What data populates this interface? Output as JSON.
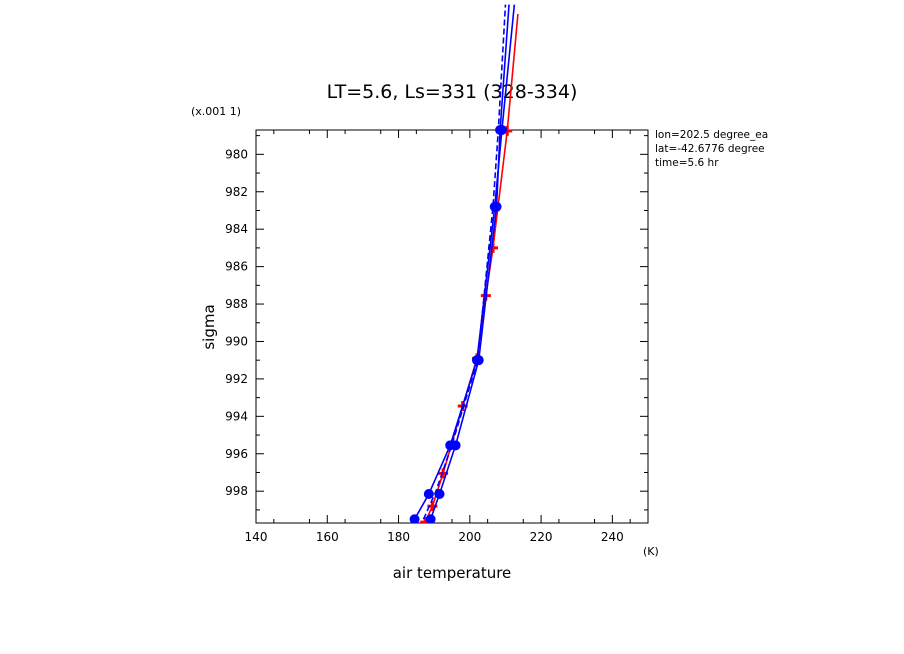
{
  "chart_data": {
    "type": "line",
    "title": "LT=5.6, Ls=331 (328-334)",
    "xlabel": "air temperature",
    "xunit": "(K)",
    "ylabel": "sigma",
    "yscale_label": "(x.001 1)",
    "xlim": [
      140,
      250
    ],
    "ylim": [
      999.7,
      978.7
    ],
    "xticks": [
      140,
      160,
      180,
      200,
      220,
      240
    ],
    "yticks": [
      980,
      982,
      984,
      986,
      988,
      990,
      992,
      994,
      996,
      998
    ],
    "grid": false,
    "info_lines": [
      "lon=202.5 degree_ea",
      "lat=-42.6776 degree",
      "time=5.6 hr"
    ],
    "series": [
      {
        "color": "#ff0000",
        "marker": "plus",
        "line_style": "solid",
        "points": [
          {
            "x": 187.5,
            "y": 999.65
          },
          {
            "x": 189.5,
            "y": 998.8
          },
          {
            "x": 192.5,
            "y": 997.05
          },
          {
            "x": 198.0,
            "y": 993.45
          },
          {
            "x": 202.0,
            "y": 990.9
          },
          {
            "x": 204.5,
            "y": 987.55
          },
          {
            "x": 206.5,
            "y": 985.0
          },
          {
            "x": 210.5,
            "y": 978.75
          },
          {
            "x": 213.5,
            "y": 972.5
          }
        ]
      },
      {
        "color": "#0000ff",
        "marker": "circle",
        "line_style": "solid",
        "points": [
          {
            "x": 184.5,
            "y": 999.5
          },
          {
            "x": 188.5,
            "y": 998.15
          },
          {
            "x": 194.5,
            "y": 995.55
          },
          {
            "x": 202.0,
            "y": 991.0
          },
          {
            "x": 207.0,
            "y": 982.8
          },
          {
            "x": 209.0,
            "y": 978.7
          },
          {
            "x": 212.5,
            "y": 972.0
          }
        ]
      },
      {
        "color": "#0000ff",
        "marker": "circle",
        "line_style": "solid",
        "points": [
          {
            "x": 189.0,
            "y": 999.5
          },
          {
            "x": 191.5,
            "y": 998.15
          },
          {
            "x": 196.0,
            "y": 995.55
          },
          {
            "x": 202.5,
            "y": 991.0
          },
          {
            "x": 207.5,
            "y": 982.8
          },
          {
            "x": 208.5,
            "y": 978.7
          },
          {
            "x": 211.0,
            "y": 972.0
          }
        ]
      },
      {
        "color": "#0000ff",
        "marker": "none",
        "line_style": "dashed",
        "points": [
          {
            "x": 187.0,
            "y": 999.5
          },
          {
            "x": 190.5,
            "y": 998.0
          },
          {
            "x": 195.0,
            "y": 995.5
          },
          {
            "x": 202.2,
            "y": 991.0
          },
          {
            "x": 206.5,
            "y": 982.8
          },
          {
            "x": 208.0,
            "y": 978.7
          },
          {
            "x": 210.0,
            "y": 972.0
          }
        ]
      }
    ]
  }
}
